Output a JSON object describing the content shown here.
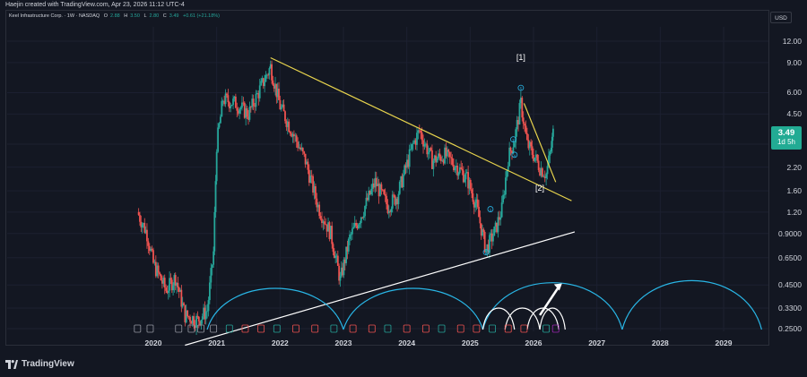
{
  "header": {
    "creator_line": "Haejin created with TradingView.com, Apr 23, 2026 11:12 UTC-4",
    "symbol_line": "Keel Infrastructure Corp. · 1W · NASDAQ",
    "open_label": "O",
    "open": "2.88",
    "high_label": "H",
    "high": "3.50",
    "low_label": "L",
    "low": "2.80",
    "close_label": "C",
    "close": "3.49",
    "change": "+0.61 (+21.18%)"
  },
  "axis": {
    "currency": "USD",
    "current_price": "3.49",
    "countdown": "1d 5h"
  },
  "footer": {
    "brand": "TradingView"
  },
  "annotations": {
    "wave1": "[1]",
    "wave2": "[2]",
    "sub_waves": [
      "1",
      "2",
      "3",
      "4",
      "5"
    ]
  },
  "colors": {
    "background": "#131722",
    "up_candle": "#26a69a",
    "down_candle": "#ef5350",
    "resistance_line": "#e8d44d",
    "support_line": "#ffffff",
    "cycle_arcs": "#29b6e6",
    "projection_arcs": "#ffffff",
    "price_tag": "#22ab94"
  },
  "chart_data": {
    "type": "candlestick",
    "scale": "log",
    "ylim": [
      0.22,
      15
    ],
    "y_ticks": [
      "12.00",
      "9.00",
      "6.00",
      "4.50",
      "3.00",
      "2.20",
      "1.60",
      "1.20",
      "0.9000",
      "0.6500",
      "0.4500",
      "0.3300",
      "0.2500"
    ],
    "x_ticks": [
      "2020",
      "2021",
      "2022",
      "2023",
      "2024",
      "2025",
      "2026",
      "2027",
      "2028",
      "2029"
    ],
    "xlim": [
      2019.6,
      2029.8
    ],
    "approx_price_path": [
      {
        "x": 2019.75,
        "y": 1.2
      },
      {
        "x": 2019.9,
        "y": 0.9
      },
      {
        "x": 2020.0,
        "y": 0.6
      },
      {
        "x": 2020.2,
        "y": 0.42
      },
      {
        "x": 2020.35,
        "y": 0.5
      },
      {
        "x": 2020.5,
        "y": 0.3
      },
      {
        "x": 2020.7,
        "y": 0.28
      },
      {
        "x": 2020.85,
        "y": 0.32
      },
      {
        "x": 2020.95,
        "y": 0.7
      },
      {
        "x": 2021.0,
        "y": 3.0
      },
      {
        "x": 2021.1,
        "y": 5.5
      },
      {
        "x": 2021.3,
        "y": 5.2
      },
      {
        "x": 2021.5,
        "y": 4.5
      },
      {
        "x": 2021.7,
        "y": 6.5
      },
      {
        "x": 2021.85,
        "y": 8.5
      },
      {
        "x": 2022.0,
        "y": 5.0
      },
      {
        "x": 2022.2,
        "y": 3.5
      },
      {
        "x": 2022.4,
        "y": 2.4
      },
      {
        "x": 2022.6,
        "y": 1.3
      },
      {
        "x": 2022.8,
        "y": 0.9
      },
      {
        "x": 2022.95,
        "y": 0.48
      },
      {
        "x": 2023.1,
        "y": 0.85
      },
      {
        "x": 2023.3,
        "y": 1.2
      },
      {
        "x": 2023.5,
        "y": 1.8
      },
      {
        "x": 2023.7,
        "y": 1.3
      },
      {
        "x": 2023.85,
        "y": 1.5
      },
      {
        "x": 2024.1,
        "y": 3.0
      },
      {
        "x": 2024.2,
        "y": 3.6
      },
      {
        "x": 2024.4,
        "y": 2.4
      },
      {
        "x": 2024.6,
        "y": 2.6
      },
      {
        "x": 2024.8,
        "y": 2.2
      },
      {
        "x": 2024.95,
        "y": 1.9
      },
      {
        "x": 2025.1,
        "y": 1.3
      },
      {
        "x": 2025.25,
        "y": 0.72
      },
      {
        "x": 2025.4,
        "y": 0.95
      },
      {
        "x": 2025.5,
        "y": 1.25
      },
      {
        "x": 2025.6,
        "y": 2.5
      },
      {
        "x": 2025.7,
        "y": 3.2
      },
      {
        "x": 2025.8,
        "y": 5.2
      },
      {
        "x": 2025.9,
        "y": 3.0
      },
      {
        "x": 2026.0,
        "y": 2.6
      },
      {
        "x": 2026.1,
        "y": 2.2
      },
      {
        "x": 2026.2,
        "y": 2.0
      },
      {
        "x": 2026.28,
        "y": 2.88
      },
      {
        "x": 2026.31,
        "y": 3.49
      }
    ]
  }
}
